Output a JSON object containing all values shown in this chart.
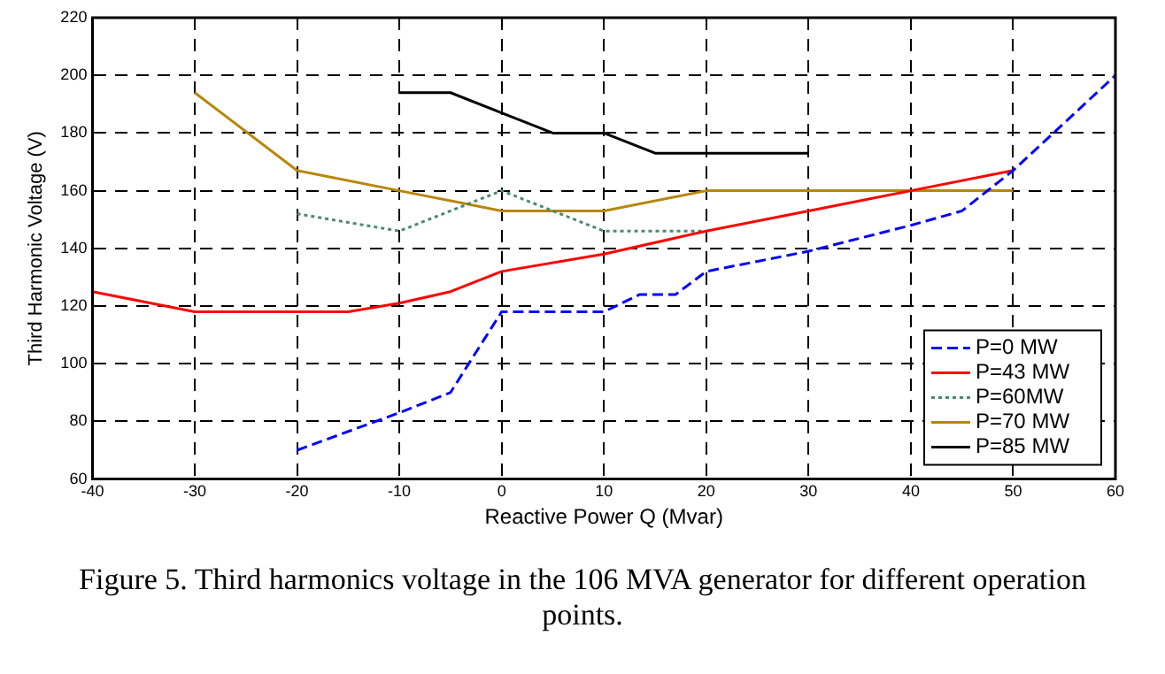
{
  "chart_data": {
    "type": "line",
    "xlabel": "Reactive Power Q (Mvar)",
    "ylabel": "Third Harmonic Voltage (V)",
    "xlim": [
      -40,
      60
    ],
    "xticks": [
      -40,
      -30,
      -20,
      -10,
      0,
      10,
      20,
      30,
      40,
      50,
      60
    ],
    "ylim": [
      60,
      220
    ],
    "yticks": [
      60,
      80,
      100,
      120,
      140,
      160,
      180,
      200,
      220
    ],
    "grid": true,
    "legend": "bottom right",
    "marker": "none",
    "annotations": [
      "Figure 5. Third harmonics voltage in the 106 MVA generator for different operation points."
    ],
    "series": [
      {
        "name": "P=0 MW",
        "color": "#0000ff",
        "line_style": "dashed",
        "x": [
          -20,
          -10,
          -5,
          0,
          10,
          13.5,
          17,
          20,
          30,
          40,
          45,
          50,
          60
        ],
        "values": [
          70,
          83,
          90,
          118,
          118,
          124,
          124,
          132,
          139,
          148,
          153,
          167,
          200
        ]
      },
      {
        "name": "P=43 MW",
        "color": "#ff0000",
        "line_style": "solid",
        "x": [
          -40,
          -30,
          -15,
          -10,
          -5,
          0,
          10,
          20,
          30,
          40,
          50
        ],
        "values": [
          125,
          118,
          118,
          121,
          125,
          132,
          138,
          146,
          153,
          160,
          167
        ]
      },
      {
        "name": "P=60MW",
        "color": "#4a8a6a",
        "line_style": "dotted",
        "x": [
          -20,
          -10,
          0,
          10,
          20
        ],
        "values": [
          152,
          146,
          160,
          146,
          146
        ]
      },
      {
        "name": "P=70 MW",
        "color": "#b8860b",
        "line_style": "solid",
        "x": [
          -30,
          -20,
          -10,
          0,
          10,
          20,
          50
        ],
        "values": [
          194,
          167,
          160,
          153,
          153,
          160,
          160
        ]
      },
      {
        "name": "P=85 MW",
        "color": "#000000",
        "line_style": "solid",
        "x": [
          -10,
          -5,
          0,
          5,
          10,
          15,
          30
        ],
        "values": [
          194,
          194,
          187,
          180,
          180,
          173,
          173
        ]
      }
    ]
  }
}
